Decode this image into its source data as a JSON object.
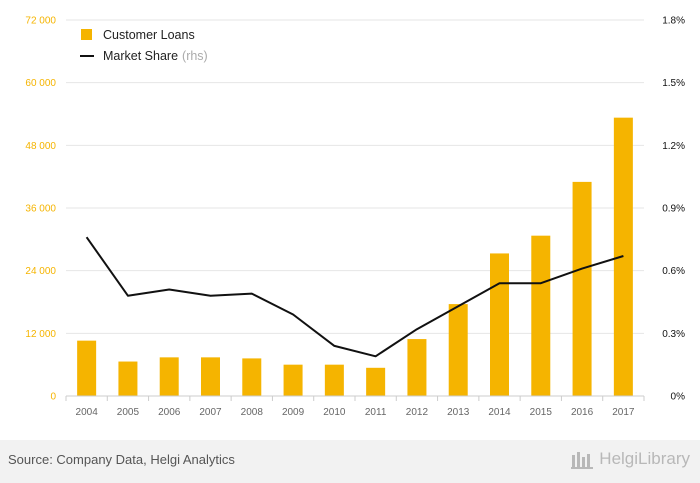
{
  "chart_data": {
    "type": "bar+line",
    "categories": [
      "2004",
      "2005",
      "2006",
      "2007",
      "2008",
      "2009",
      "2010",
      "2011",
      "2012",
      "2013",
      "2014",
      "2015",
      "2016",
      "2017"
    ],
    "series": [
      {
        "name": "Customer Loans",
        "type": "bar",
        "axis": "left",
        "color": "#f5b400",
        "values": [
          10600,
          6600,
          7400,
          7400,
          7200,
          6000,
          6000,
          5400,
          10900,
          17600,
          27300,
          30700,
          41000,
          53300
        ]
      },
      {
        "name": "Market Share",
        "legend_suffix": "(rhs)",
        "type": "line",
        "axis": "right",
        "color": "#111111",
        "values": [
          0.76,
          0.48,
          0.51,
          0.48,
          0.49,
          0.39,
          0.24,
          0.19,
          0.32,
          0.43,
          0.54,
          0.54,
          0.61,
          0.67
        ]
      }
    ],
    "left_axis": {
      "ticks": [
        "0",
        "12 000",
        "24 000",
        "36 000",
        "48 000",
        "60 000",
        "72 000"
      ],
      "ylim": [
        0,
        72000
      ]
    },
    "right_axis": {
      "ticks": [
        "0%",
        "0.3%",
        "0.6%",
        "0.9%",
        "1.2%",
        "1.5%",
        "1.8%"
      ],
      "ylim": [
        0,
        1.8
      ]
    },
    "grid": true,
    "legend": "top-left"
  },
  "footer": {
    "source": "Source: Company Data, Helgi Analytics",
    "brand": "HelgiLibrary"
  }
}
